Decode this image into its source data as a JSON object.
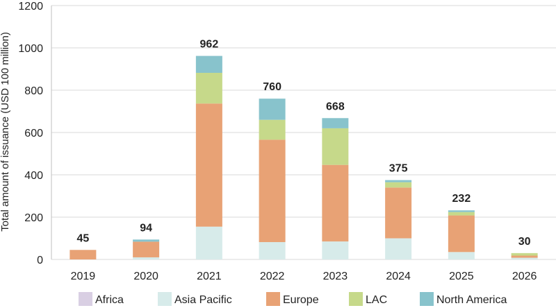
{
  "chart_data": {
    "type": "bar",
    "stacked": true,
    "title": "",
    "xlabel": "",
    "ylabel": "Total amount of issuance (USD 100 million)",
    "ylim": [
      0,
      1200
    ],
    "yticks": [
      "0",
      "200",
      "400",
      "600",
      "800",
      "1000",
      "1200"
    ],
    "categories": [
      "2019",
      "2020",
      "2021",
      "2022",
      "2023",
      "2024",
      "2025",
      "2026"
    ],
    "totals": [
      "45",
      "94",
      "962",
      "760",
      "668",
      "375",
      "232",
      "30"
    ],
    "series": [
      {
        "name": "Africa",
        "color": "#d9cfe3",
        "values": [
          0,
          0,
          0,
          0,
          0,
          0,
          0,
          0
        ]
      },
      {
        "name": "Asia Pacific",
        "color": "#d7ebea",
        "values": [
          0,
          10,
          155,
          82,
          85,
          100,
          35,
          8
        ]
      },
      {
        "name": "Europe",
        "color": "#e8a275",
        "values": [
          45,
          74,
          582,
          484,
          362,
          240,
          173,
          10
        ]
      },
      {
        "name": "LAC",
        "color": "#c6d98a",
        "values": [
          0,
          0,
          145,
          94,
          173,
          25,
          16,
          12
        ]
      },
      {
        "name": "North America",
        "color": "#88c3cc",
        "values": [
          0,
          10,
          80,
          100,
          48,
          10,
          8,
          0
        ]
      }
    ],
    "grid": "horizontal",
    "legend_position": "bottom"
  }
}
